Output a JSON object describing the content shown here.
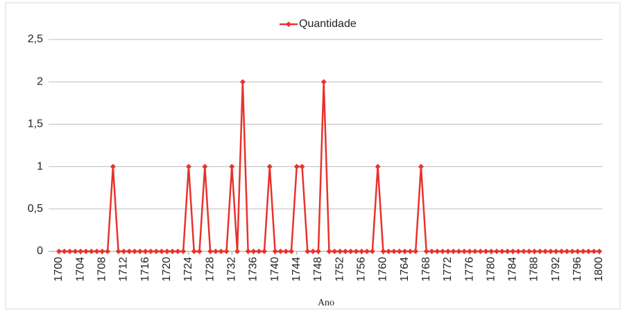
{
  "chart_data": {
    "type": "line",
    "x": [
      1700,
      1701,
      1702,
      1703,
      1704,
      1705,
      1706,
      1707,
      1708,
      1709,
      1710,
      1711,
      1712,
      1713,
      1714,
      1715,
      1716,
      1717,
      1718,
      1719,
      1720,
      1721,
      1722,
      1723,
      1724,
      1725,
      1726,
      1727,
      1728,
      1729,
      1730,
      1731,
      1732,
      1733,
      1734,
      1735,
      1736,
      1737,
      1738,
      1739,
      1740,
      1741,
      1742,
      1743,
      1744,
      1745,
      1746,
      1747,
      1748,
      1749,
      1750,
      1751,
      1752,
      1753,
      1754,
      1755,
      1756,
      1757,
      1758,
      1759,
      1760,
      1761,
      1762,
      1763,
      1764,
      1765,
      1766,
      1767,
      1768,
      1769,
      1770,
      1771,
      1772,
      1773,
      1774,
      1775,
      1776,
      1777,
      1778,
      1779,
      1780,
      1781,
      1782,
      1783,
      1784,
      1785,
      1786,
      1787,
      1788,
      1789,
      1790,
      1791,
      1792,
      1793,
      1794,
      1795,
      1796,
      1797,
      1798,
      1799,
      1800
    ],
    "series": [
      {
        "name": "Quantidade",
        "color": "#e8322c",
        "values": [
          0,
          0,
          0,
          0,
          0,
          0,
          0,
          0,
          0,
          0,
          1,
          0,
          0,
          0,
          0,
          0,
          0,
          0,
          0,
          0,
          0,
          0,
          0,
          0,
          1,
          0,
          0,
          1,
          0,
          0,
          0,
          0,
          1,
          0,
          2,
          0,
          0,
          0,
          0,
          1,
          0,
          0,
          0,
          0,
          1,
          1,
          0,
          0,
          0,
          2,
          0,
          0,
          0,
          0,
          0,
          0,
          0,
          0,
          0,
          1,
          0,
          0,
          0,
          0,
          0,
          0,
          0,
          1,
          0,
          0,
          0,
          0,
          0,
          0,
          0,
          0,
          0,
          0,
          0,
          0,
          0,
          0,
          0,
          0,
          0,
          0,
          0,
          0,
          0,
          0,
          0,
          0,
          0,
          0,
          0,
          0,
          0,
          0,
          0,
          0,
          0
        ]
      }
    ],
    "x_label": "Ano",
    "xlim": [
      1700,
      1800
    ],
    "xticks": [
      1700,
      1704,
      1708,
      1712,
      1716,
      1720,
      1724,
      1728,
      1732,
      1736,
      1740,
      1744,
      1748,
      1752,
      1756,
      1760,
      1764,
      1768,
      1772,
      1776,
      1780,
      1784,
      1788,
      1792,
      1796,
      1800
    ],
    "ylim": [
      0,
      2.5
    ],
    "yticks": [
      0,
      {
        "value": 0.5,
        "label": "0,5"
      },
      1,
      {
        "value": 1.5,
        "label": "1,5"
      },
      2,
      {
        "value": 2.5,
        "label": "2,5"
      }
    ],
    "grid": true,
    "legend": "top"
  }
}
